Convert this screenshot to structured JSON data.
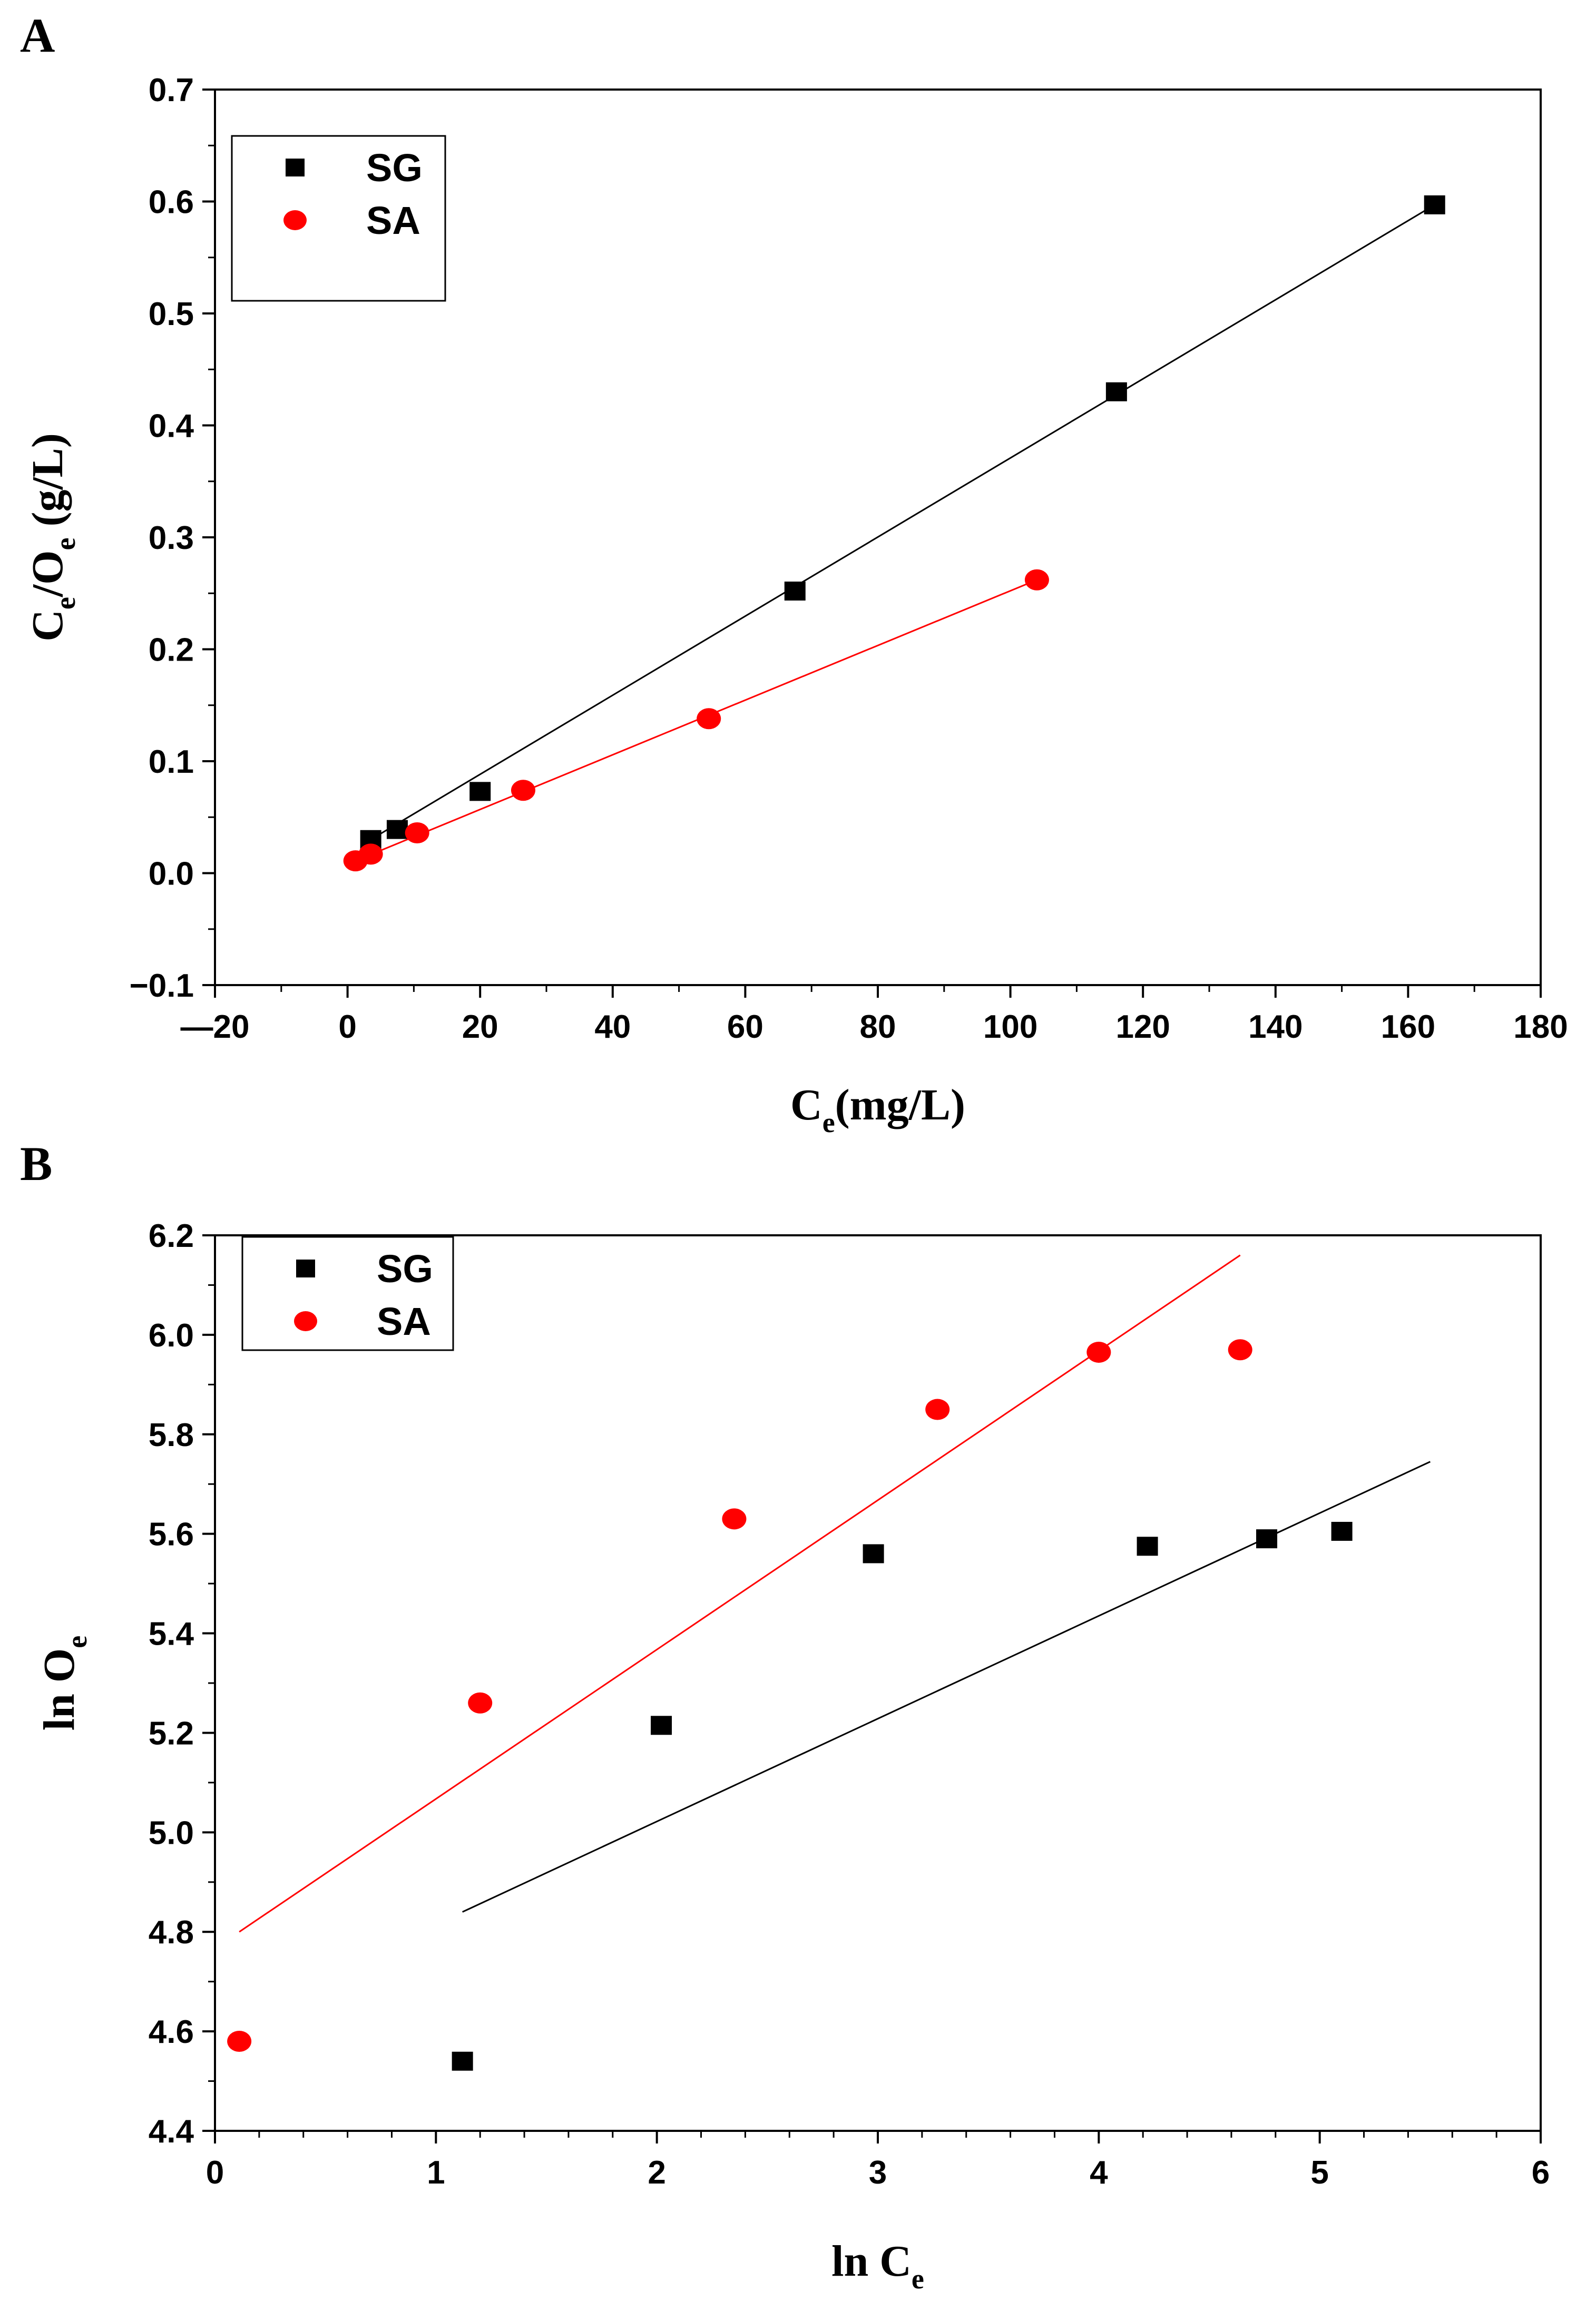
{
  "chart_data": [
    {
      "panel": "A",
      "type": "scatter",
      "xlabel": {
        "main": "C",
        "sub": "e",
        "tail": "(mg/L)"
      },
      "ylabel": {
        "p1": "C",
        "s1": "e",
        "p2": "/O",
        "s2": "e",
        "tail": " (g/L)"
      },
      "xlim": [
        -20,
        180
      ],
      "ylim": [
        -0.1,
        0.7
      ],
      "xticks": [
        -20,
        0,
        20,
        40,
        60,
        80,
        100,
        120,
        140,
        160,
        180
      ],
      "xtick_labels": [
        "—20",
        "0",
        "20",
        "40",
        "60",
        "80",
        "100",
        "120",
        "140",
        "160",
        "180"
      ],
      "yticks": [
        -0.1,
        0.0,
        0.1,
        0.2,
        0.3,
        0.4,
        0.5,
        0.6,
        0.7
      ],
      "ytick_labels": [
        "−0.1",
        "0.0",
        "0.1",
        "0.2",
        "0.3",
        "0.4",
        "0.5",
        "0.6",
        "0.7"
      ],
      "grid": false,
      "legend": "top-left",
      "series": [
        {
          "name": "SG",
          "marker": "square",
          "color": "#000000",
          "points": [
            [
              3.5,
              0.03
            ],
            [
              7.5,
              0.039
            ],
            [
              20,
              0.073
            ],
            [
              67.5,
              0.252
            ],
            [
              116,
              0.43
            ],
            [
              164,
              0.597
            ]
          ],
          "fit": [
            [
              3.5,
              0.03
            ],
            [
              164,
              0.597
            ]
          ]
        },
        {
          "name": "SA",
          "marker": "circle",
          "color": "#ff0000",
          "points": [
            [
              1.2,
              0.011
            ],
            [
              3.5,
              0.017
            ],
            [
              10.5,
              0.036
            ],
            [
              26.5,
              0.074
            ],
            [
              54.5,
              0.138
            ],
            [
              104,
              0.262
            ]
          ],
          "fit": [
            [
              1.2,
              0.011
            ],
            [
              104,
              0.262
            ]
          ]
        }
      ]
    },
    {
      "panel": "B",
      "type": "scatter",
      "xlabel": {
        "main": "ln C",
        "sub": "e",
        "tail": ""
      },
      "ylabel": {
        "p1": "ln O",
        "s1": "e",
        "p2": "",
        "s2": "",
        "tail": ""
      },
      "xlim": [
        0,
        6
      ],
      "ylim": [
        4.4,
        6.2
      ],
      "xticks": [
        0,
        1,
        2,
        3,
        4,
        5,
        6
      ],
      "xtick_labels": [
        "0",
        "1",
        "2",
        "3",
        "4",
        "5",
        "6"
      ],
      "yticks": [
        4.4,
        4.6,
        4.8,
        5.0,
        5.2,
        5.4,
        5.6,
        5.8,
        6.0,
        6.2
      ],
      "ytick_labels": [
        "4.4",
        "4.6",
        "4.8",
        "5.0",
        "5.2",
        "5.4",
        "5.6",
        "5.8",
        "6.0",
        "6.2"
      ],
      "grid": false,
      "legend": "top-left",
      "series": [
        {
          "name": "SG",
          "marker": "square",
          "color": "#000000",
          "points": [
            [
              1.12,
              4.54
            ],
            [
              2.02,
              5.215
            ],
            [
              2.98,
              5.56
            ],
            [
              4.22,
              5.575
            ],
            [
              4.76,
              5.59
            ],
            [
              5.1,
              5.605
            ]
          ],
          "fit": [
            [
              1.12,
              4.84
            ],
            [
              5.5,
              5.745
            ]
          ]
        },
        {
          "name": "SA",
          "marker": "circle",
          "color": "#ff0000",
          "points": [
            [
              0.11,
              4.58
            ],
            [
              1.2,
              5.26
            ],
            [
              2.35,
              5.63
            ],
            [
              3.27,
              5.85
            ],
            [
              4.0,
              5.965
            ],
            [
              4.64,
              5.97
            ]
          ],
          "fit": [
            [
              0.11,
              4.8
            ],
            [
              4.64,
              6.16
            ]
          ]
        }
      ]
    }
  ]
}
